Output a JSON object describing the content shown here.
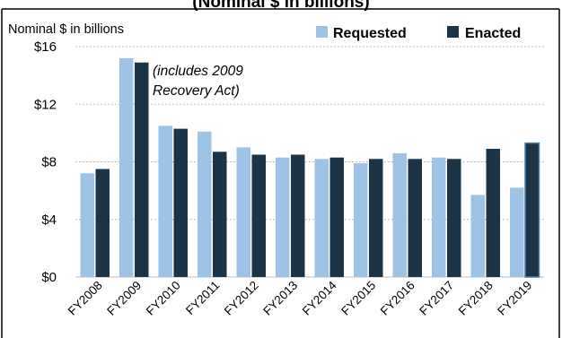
{
  "chart_data": {
    "type": "bar",
    "title": "(Nominal $ in billions)",
    "ylabel": "Nominal $ in billions",
    "xlabel": "",
    "categories": [
      "FY2008",
      "FY2009",
      "FY2010",
      "FY2011",
      "FY2012",
      "FY2013",
      "FY2014",
      "FY2015",
      "FY2016",
      "FY2017",
      "FY2018",
      "FY2019"
    ],
    "series": [
      {
        "name": "Requested",
        "values": [
          7.2,
          15.2,
          10.5,
          10.1,
          9.0,
          8.3,
          8.2,
          7.9,
          8.6,
          8.3,
          5.7,
          6.2
        ]
      },
      {
        "name": "Enacted",
        "values": [
          7.5,
          14.9,
          10.3,
          8.7,
          8.5,
          8.5,
          8.3,
          8.2,
          8.2,
          8.2,
          8.9,
          9.3
        ]
      }
    ],
    "ylim": [
      0,
      16
    ],
    "yticks": [
      0,
      4,
      8,
      12,
      16
    ],
    "ytick_labels": [
      "$0",
      "$4",
      "$8",
      "$12",
      "$16"
    ],
    "grid": "horizontal-dotted",
    "legend_position": "top-right",
    "annotation": {
      "lines": [
        "(includes 2009",
        "Recovery Act)"
      ],
      "category": "FY2009"
    },
    "colors": {
      "Requested": "#9dc3e6",
      "Enacted": "#1b3447",
      "grid": "#a6a6a6",
      "border": "#000000"
    }
  }
}
